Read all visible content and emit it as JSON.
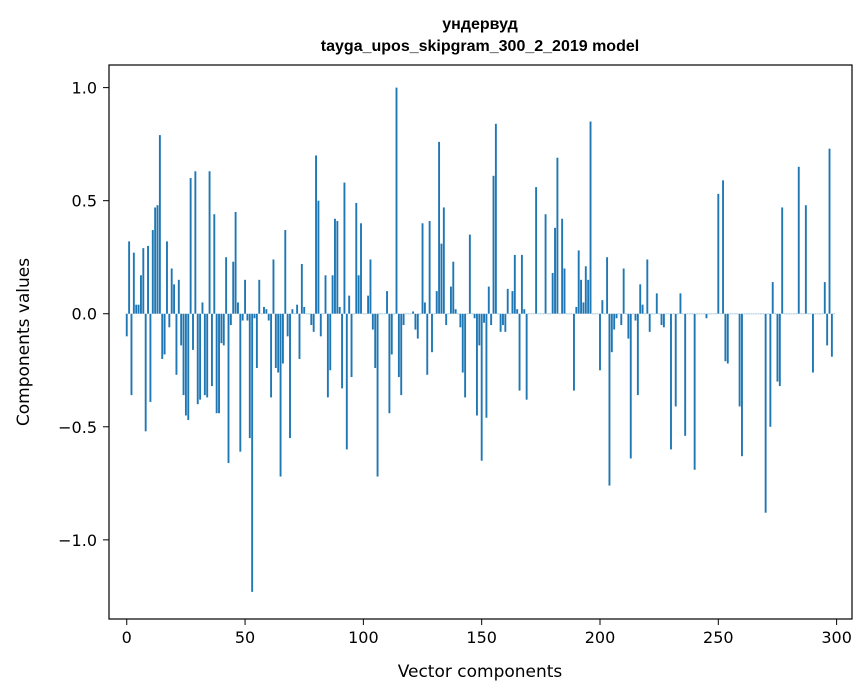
{
  "chart_data": {
    "type": "bar",
    "title": "ундервуд",
    "subtitle": "tayga_upos_skipgram_300_2_2019 model",
    "xlabel": "Vector components",
    "ylabel": "Components values",
    "xlim": [
      -7.5,
      306.5
    ],
    "ylim": [
      -1.35,
      1.1
    ],
    "xticks": [
      0,
      50,
      100,
      150,
      200,
      250,
      300
    ],
    "xtick_labels": [
      "0",
      "50",
      "100",
      "150",
      "200",
      "250",
      "300"
    ],
    "yticks": [
      -1.0,
      -0.5,
      0.0,
      0.5,
      1.0
    ],
    "ytick_labels": [
      "−1.0",
      "−0.5",
      "0.0",
      "0.5",
      "1.0"
    ],
    "bar_color": "#1f77b4",
    "grid": false,
    "values": [
      -0.1,
      0.32,
      -0.36,
      0.27,
      0.04,
      0.04,
      0.17,
      0.29,
      -0.52,
      0.3,
      -0.39,
      0.37,
      0.47,
      0.48,
      0.79,
      -0.2,
      -0.18,
      0.32,
      -0.06,
      0.2,
      0.13,
      -0.27,
      0.15,
      -0.14,
      -0.36,
      -0.45,
      -0.47,
      0.6,
      -0.16,
      0.63,
      -0.4,
      -0.38,
      0.05,
      -0.36,
      -0.37,
      0.63,
      -0.32,
      0.44,
      -0.44,
      -0.44,
      -0.13,
      -0.14,
      0.25,
      -0.66,
      -0.05,
      0.23,
      0.45,
      0.05,
      -0.61,
      -0.03,
      0.15,
      -0.03,
      -0.55,
      -1.23,
      -0.02,
      -0.24,
      0.15,
      0.0,
      0.03,
      0.02,
      -0.03,
      -0.37,
      0.24,
      -0.24,
      -0.26,
      -0.72,
      -0.22,
      0.37,
      -0.1,
      -0.55,
      0.02,
      0.0,
      0.04,
      -0.2,
      0.22,
      0.03,
      0.0,
      0.0,
      -0.05,
      -0.08,
      0.7,
      0.5,
      -0.1,
      0.0,
      0.17,
      -0.37,
      -0.25,
      0.17,
      0.42,
      0.41,
      0.03,
      -0.33,
      0.58,
      -0.6,
      0.08,
      -0.28,
      0.0,
      0.49,
      0.17,
      0.4,
      0.0,
      0.0,
      0.08,
      0.24,
      -0.07,
      -0.24,
      -0.72,
      0.0,
      0.0,
      0.0,
      0.1,
      -0.44,
      -0.18,
      0.0,
      1.0,
      -0.28,
      -0.36,
      -0.05,
      0.0,
      0.0,
      0.0,
      0.01,
      -0.07,
      -0.11,
      0.0,
      0.4,
      0.05,
      -0.27,
      0.41,
      -0.17,
      0.0,
      0.1,
      0.76,
      0.31,
      0.47,
      -0.05,
      0.0,
      0.12,
      0.23,
      0.02,
      0.0,
      -0.06,
      -0.26,
      -0.37,
      0.0,
      0.35,
      0.0,
      -0.02,
      -0.45,
      -0.14,
      -0.65,
      -0.04,
      -0.46,
      0.12,
      -0.05,
      0.61,
      0.84,
      0.0,
      -0.08,
      -0.05,
      -0.08,
      0.11,
      0.0,
      0.1,
      0.26,
      0.02,
      -0.34,
      0.26,
      0.02,
      -0.38,
      0.0,
      0.0,
      0.0,
      0.56,
      0.0,
      0.0,
      0.0,
      0.44,
      0.0,
      0.0,
      0.18,
      0.38,
      0.69,
      0.0,
      0.42,
      0.2,
      0.0,
      0.0,
      0.0,
      -0.34,
      0.03,
      0.28,
      0.15,
      0.05,
      0.21,
      0.15,
      0.85,
      0.0,
      0.0,
      0.0,
      -0.25,
      0.06,
      0.0,
      0.25,
      -0.76,
      -0.17,
      -0.07,
      -0.02,
      0.0,
      -0.05,
      0.2,
      0.0,
      -0.11,
      -0.64,
      0.0,
      -0.03,
      -0.36,
      0.13,
      0.04,
      0.0,
      0.24,
      -0.08,
      0.0,
      0.0,
      0.09,
      0.0,
      -0.05,
      -0.06,
      0.0,
      0.0,
      -0.6,
      0.0,
      -0.41,
      0.0,
      0.09,
      0.0,
      -0.54,
      0.0,
      0.0,
      0.0,
      -0.69,
      0.0,
      0.0,
      0.0,
      0.0,
      -0.02,
      0.0,
      0.0,
      0.0,
      0.0,
      0.53,
      0.0,
      0.59,
      -0.21,
      -0.22,
      0.0,
      0.0,
      0.0,
      0.0,
      -0.41,
      -0.63,
      0.0,
      0.0,
      0.0,
      0.0,
      0.0,
      0.0,
      0.0,
      0.0,
      0.0,
      -0.88,
      0.0,
      -0.5,
      0.14,
      0.0,
      -0.3,
      -0.32,
      0.47,
      0.0,
      0.0,
      0.0,
      0.0,
      0.0,
      0.0,
      0.65,
      0.0,
      0.0,
      0.48,
      0.0,
      0.0,
      -0.26,
      0.0,
      0.0,
      0.0,
      0.0,
      0.14,
      -0.14,
      0.73,
      -0.19,
      0.0
    ]
  }
}
